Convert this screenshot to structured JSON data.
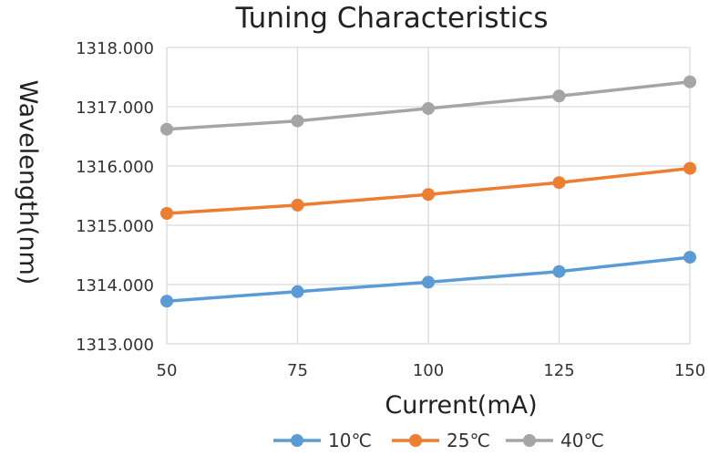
{
  "chart_data": {
    "type": "line",
    "title": "Tuning Characteristics",
    "xlabel": "Current(mA)",
    "ylabel": "Wavelength(nm)",
    "x": [
      50,
      75,
      100,
      125,
      150
    ],
    "xticks": [
      "50",
      "75",
      "100",
      "125",
      "150"
    ],
    "xlim": [
      50,
      150
    ],
    "ylim": [
      1313,
      1318
    ],
    "yticks": [
      "1313.000",
      "1314.000",
      "1315.000",
      "1316.000",
      "1317.000",
      "1318.000"
    ],
    "grid": true,
    "legend": "bottom",
    "series": [
      {
        "name": "10℃",
        "color": "#5b9bd5",
        "values": [
          1313.72,
          1313.88,
          1314.04,
          1314.22,
          1314.46
        ]
      },
      {
        "name": "25℃",
        "color": "#ed7d31",
        "values": [
          1315.2,
          1315.34,
          1315.52,
          1315.72,
          1315.96
        ]
      },
      {
        "name": "40℃",
        "color": "#a5a5a5",
        "values": [
          1316.62,
          1316.76,
          1316.97,
          1317.18,
          1317.42
        ]
      }
    ]
  }
}
